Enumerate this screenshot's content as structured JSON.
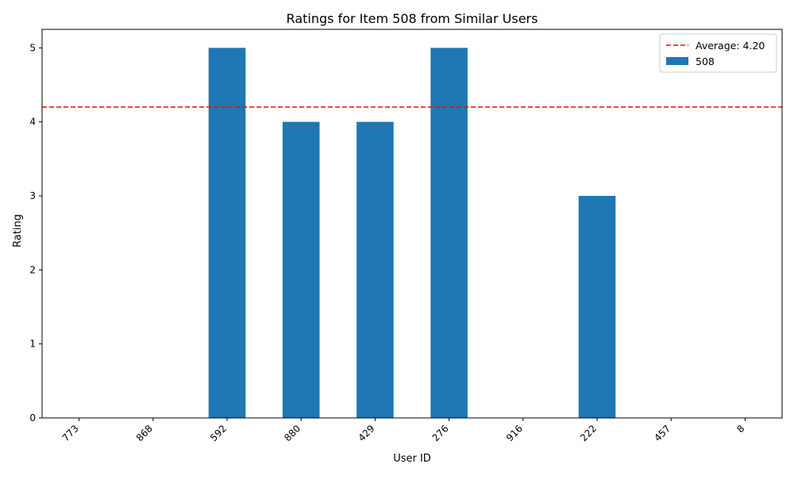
{
  "chart_data": {
    "type": "bar",
    "title": "Ratings for Item 508 from Similar Users",
    "xlabel": "User ID",
    "ylabel": "Rating",
    "categories": [
      "773",
      "868",
      "592",
      "880",
      "429",
      "276",
      "916",
      "222",
      "457",
      "8"
    ],
    "series": [
      {
        "name": "508",
        "values": [
          0,
          0,
          5,
          4,
          4,
          5,
          0,
          3,
          0,
          0
        ],
        "color": "#1f77b4"
      }
    ],
    "ylim": [
      0,
      5.25
    ],
    "yticks": [
      0,
      1,
      2,
      3,
      4,
      5
    ],
    "reference_line": {
      "label": "Average: 4.20",
      "value": 4.2,
      "color": "#ff0000",
      "style": "dashed"
    },
    "legend": {
      "position": "top-right",
      "entries": [
        "Average: 4.20",
        "508"
      ]
    },
    "grid": false
  }
}
